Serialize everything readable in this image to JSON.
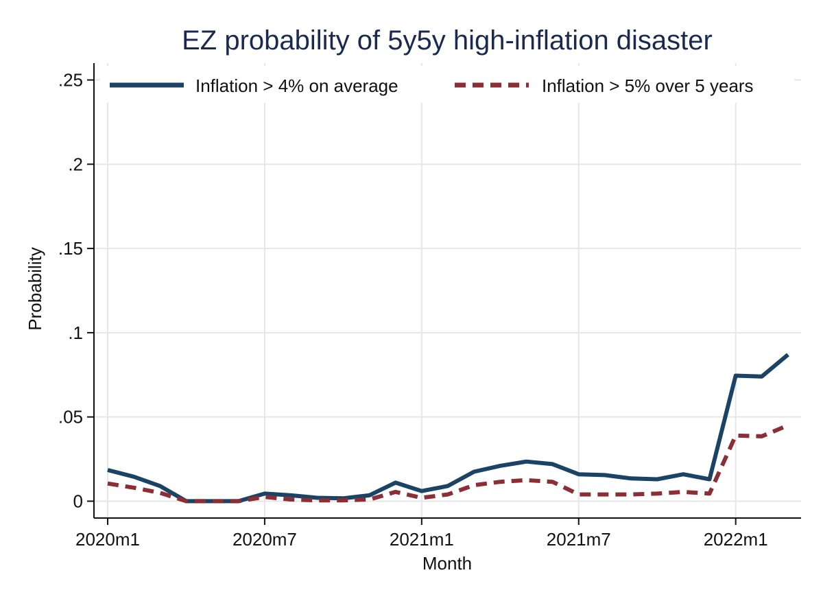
{
  "chart_data": {
    "type": "line",
    "title": "EZ probability of 5y5y high-inflation disaster",
    "xlabel": "Month",
    "ylabel": "Probability",
    "ylim": [
      -0.01,
      0.26
    ],
    "yticks": [
      0,
      0.05,
      0.1,
      0.15,
      0.2,
      0.25
    ],
    "ytick_labels": [
      "0",
      ".05",
      ".1",
      ".15",
      ".2",
      ".25"
    ],
    "xticks": [
      "2020m1",
      "2020m7",
      "2021m1",
      "2021m7",
      "2022m1"
    ],
    "grid": true,
    "legend_position": "top",
    "x": [
      "2020m1",
      "2020m2",
      "2020m3",
      "2020m4",
      "2020m5",
      "2020m6",
      "2020m7",
      "2020m8",
      "2020m9",
      "2020m10",
      "2020m11",
      "2020m12",
      "2021m1",
      "2021m2",
      "2021m3",
      "2021m4",
      "2021m5",
      "2021m6",
      "2021m7",
      "2021m8",
      "2021m9",
      "2021m10",
      "2021m11",
      "2021m12",
      "2022m1",
      "2022m2",
      "2022m3"
    ],
    "series": [
      {
        "name": "Inflation > 4% on average",
        "color": "#1a4366",
        "style": "solid",
        "values": [
          0.0185,
          0.0145,
          0.009,
          0.0,
          0.0,
          0.0,
          0.0045,
          0.0035,
          0.002,
          0.0017,
          0.0035,
          0.011,
          0.006,
          0.009,
          0.0175,
          0.021,
          0.0235,
          0.022,
          0.016,
          0.0155,
          0.0135,
          0.013,
          0.016,
          0.013,
          0.0745,
          0.074,
          0.087
        ]
      },
      {
        "name": "Inflation > 5% over 5 years",
        "color": "#8b2e35",
        "style": "dashed",
        "values": [
          0.0105,
          0.008,
          0.005,
          0.0,
          0.0,
          0.0,
          0.0025,
          0.001,
          0.0005,
          0.0005,
          0.001,
          0.0055,
          0.002,
          0.004,
          0.0095,
          0.0115,
          0.0125,
          0.0115,
          0.004,
          0.004,
          0.004,
          0.0045,
          0.0055,
          0.0045,
          0.039,
          0.0385,
          0.045
        ]
      }
    ]
  }
}
